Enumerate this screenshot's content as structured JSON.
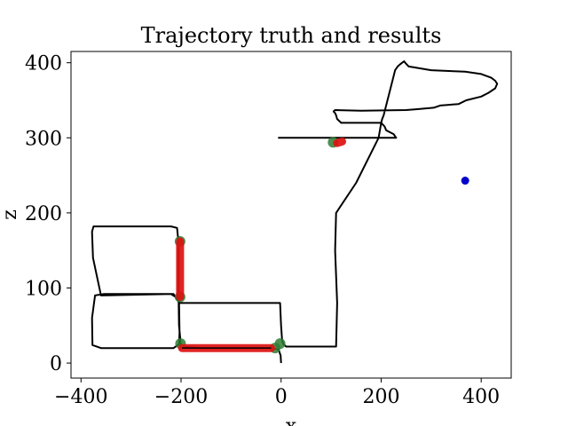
{
  "chart_data": {
    "type": "line",
    "title": "Trajectory truth and results",
    "xlabel": "x",
    "ylabel": "z",
    "xlim": [
      -420,
      460
    ],
    "ylim": [
      -20,
      415
    ],
    "grid": false,
    "xticks": [
      {
        "value": -400,
        "label": "−400"
      },
      {
        "value": -200,
        "label": "−200"
      },
      {
        "value": 0,
        "label": "0"
      },
      {
        "value": 200,
        "label": "200"
      },
      {
        "value": 400,
        "label": "400"
      }
    ],
    "yticks": [
      {
        "value": 0,
        "label": "0"
      },
      {
        "value": 100,
        "label": "100"
      },
      {
        "value": 200,
        "label": "200"
      },
      {
        "value": 300,
        "label": "300"
      },
      {
        "value": 400,
        "label": "400"
      }
    ],
    "series": [
      {
        "role": "truth",
        "color": "#000000",
        "x": [
          0,
          -1,
          -5,
          -20,
          -80,
          -160,
          -200,
          -204,
          -205,
          -205,
          -208,
          -220,
          -360,
          -375,
          -378,
          -376,
          -360,
          -220,
          -204,
          -203,
          -204,
          -215,
          -360,
          -377,
          -378,
          -372,
          -355,
          -215,
          -203,
          -2,
          0,
          2,
          5,
          10,
          110,
          112,
          108,
          110,
          150,
          195,
          200,
          202,
          205,
          228,
          233,
          238,
          242,
          246,
          248,
          255,
          300,
          368,
          400,
          420,
          428,
          432,
          428,
          415,
          400,
          370,
          355,
          318,
          305,
          270,
          250,
          160,
          108,
          106,
          105,
          108,
          110,
          112,
          120,
          200,
          207,
          210,
          225,
          230,
          230,
          170,
          110,
          60,
          10,
          -3,
          -6
        ],
        "y": [
          0,
          10,
          18,
          20,
          20,
          20,
          22,
          50,
          90,
          160,
          180,
          182,
          182,
          182,
          175,
          140,
          90,
          92,
          85,
          40,
          25,
          20,
          20,
          24,
          60,
          90,
          92,
          92,
          80,
          80,
          50,
          30,
          25,
          22,
          22,
          80,
          150,
          200,
          240,
          300,
          320,
          325,
          330,
          390,
          395,
          398,
          400,
          402,
          400,
          395,
          390,
          388,
          385,
          380,
          376,
          372,
          366,
          360,
          355,
          350,
          345,
          343,
          340,
          338,
          337,
          336,
          337,
          336,
          335,
          333,
          330,
          325,
          320,
          320,
          315,
          310,
          305,
          300,
          300,
          300,
          300,
          300,
          300,
          300,
          300
        ]
      }
    ],
    "results": {
      "color": "#dd1111",
      "segments": [
        {
          "x": [
            -202,
            -202
          ],
          "y": [
            88,
            162
          ]
        },
        {
          "x": [
            -198,
            -20
          ],
          "y": [
            20,
            20
          ]
        },
        {
          "x": [
            112,
            122
          ],
          "y": [
            293,
            295
          ]
        }
      ]
    },
    "markers_green": {
      "color": "#2e7d32",
      "points": [
        {
          "x": -202,
          "y": 162
        },
        {
          "x": -202,
          "y": 88
        },
        {
          "x": -201,
          "y": 26
        },
        {
          "x": -12,
          "y": 20
        },
        {
          "x": -2,
          "y": 26
        },
        {
          "x": 104,
          "y": 294
        }
      ]
    },
    "marker_blue": {
      "color": "#0000cc",
      "x": 368,
      "y": 243
    }
  }
}
